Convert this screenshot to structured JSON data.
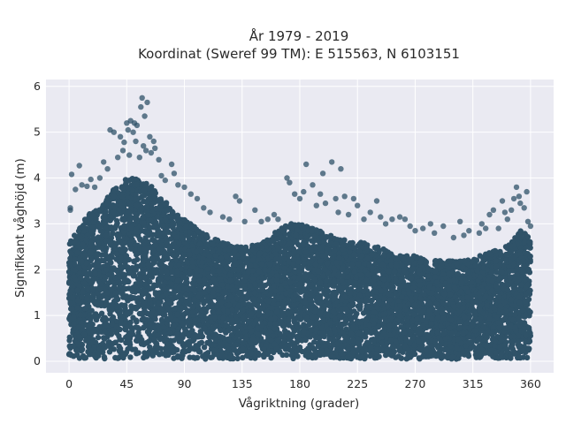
{
  "chart_data": {
    "type": "scatter",
    "title_lines": [
      "År 1979 - 2019",
      "Koordinat (Sweref 99 TM): E 515563, N 6103151"
    ],
    "xlabel": "Vågriktning (grader)",
    "ylabel": "Signifikant våghöjd (m)",
    "xlim": [
      -18,
      378
    ],
    "ylim": [
      -0.25,
      6.15
    ],
    "xticks": [
      0,
      45,
      90,
      135,
      180,
      225,
      270,
      315,
      360
    ],
    "yticks": [
      0,
      1,
      2,
      3,
      4,
      5,
      6
    ],
    "grid": true,
    "colors": {
      "background": "#eaeaf2",
      "grid": "#ffffff",
      "point": "#2f5268"
    },
    "point_opacity": 0.75,
    "dense_envelope": {
      "x": [
        0,
        5,
        10,
        15,
        20,
        25,
        30,
        35,
        40,
        45,
        50,
        55,
        60,
        65,
        70,
        75,
        80,
        85,
        90,
        95,
        100,
        110,
        120,
        130,
        140,
        150,
        160,
        170,
        180,
        190,
        200,
        210,
        220,
        230,
        240,
        250,
        260,
        270,
        280,
        290,
        300,
        310,
        320,
        330,
        340,
        345,
        350,
        355,
        360
      ],
      "y_low": 0.05,
      "y_high": [
        2.6,
        2.8,
        3.0,
        3.2,
        3.3,
        3.4,
        3.6,
        3.8,
        3.9,
        4.0,
        4.0,
        4.0,
        3.9,
        3.8,
        3.6,
        3.5,
        3.3,
        3.2,
        3.1,
        3.0,
        2.9,
        2.7,
        2.6,
        2.5,
        2.5,
        2.6,
        2.8,
        3.0,
        3.0,
        2.9,
        2.8,
        2.7,
        2.6,
        2.6,
        2.5,
        2.4,
        2.3,
        2.3,
        2.2,
        2.2,
        2.2,
        2.2,
        2.3,
        2.4,
        2.5,
        2.6,
        2.8,
        2.9,
        2.6
      ]
    },
    "outliers": [
      [
        1,
        3.35
      ],
      [
        1,
        3.3
      ],
      [
        2,
        4.08
      ],
      [
        5,
        3.75
      ],
      [
        8,
        4.27
      ],
      [
        10,
        3.85
      ],
      [
        14,
        3.82
      ],
      [
        17,
        3.97
      ],
      [
        20,
        3.8
      ],
      [
        24,
        4.0
      ],
      [
        27,
        4.35
      ],
      [
        30,
        4.2
      ],
      [
        32,
        5.05
      ],
      [
        35,
        5.0
      ],
      [
        38,
        4.45
      ],
      [
        40,
        4.9
      ],
      [
        42,
        4.6
      ],
      [
        43,
        4.78
      ],
      [
        45,
        5.2
      ],
      [
        46,
        5.05
      ],
      [
        47,
        4.5
      ],
      [
        48,
        5.25
      ],
      [
        50,
        5.0
      ],
      [
        51,
        5.2
      ],
      [
        52,
        4.8
      ],
      [
        53,
        5.15
      ],
      [
        55,
        4.45
      ],
      [
        56,
        5.55
      ],
      [
        57,
        5.75
      ],
      [
        58,
        4.7
      ],
      [
        59,
        5.35
      ],
      [
        60,
        4.6
      ],
      [
        61,
        5.65
      ],
      [
        63,
        4.9
      ],
      [
        64,
        4.55
      ],
      [
        66,
        4.8
      ],
      [
        67,
        4.65
      ],
      [
        70,
        4.4
      ],
      [
        72,
        4.05
      ],
      [
        75,
        3.95
      ],
      [
        80,
        4.3
      ],
      [
        82,
        4.1
      ],
      [
        85,
        3.85
      ],
      [
        90,
        3.8
      ],
      [
        95,
        3.65
      ],
      [
        100,
        3.55
      ],
      [
        105,
        3.35
      ],
      [
        110,
        3.25
      ],
      [
        120,
        3.15
      ],
      [
        125,
        3.1
      ],
      [
        130,
        3.6
      ],
      [
        133,
        3.5
      ],
      [
        137,
        3.05
      ],
      [
        145,
        3.3
      ],
      [
        150,
        3.05
      ],
      [
        155,
        3.1
      ],
      [
        160,
        3.2
      ],
      [
        163,
        3.1
      ],
      [
        170,
        4.0
      ],
      [
        172,
        3.9
      ],
      [
        176,
        3.65
      ],
      [
        180,
        3.55
      ],
      [
        183,
        3.7
      ],
      [
        185,
        4.3
      ],
      [
        190,
        3.85
      ],
      [
        193,
        3.4
      ],
      [
        196,
        3.65
      ],
      [
        198,
        4.1
      ],
      [
        200,
        3.45
      ],
      [
        205,
        4.35
      ],
      [
        208,
        3.55
      ],
      [
        210,
        3.25
      ],
      [
        212,
        4.2
      ],
      [
        215,
        3.6
      ],
      [
        218,
        3.2
      ],
      [
        222,
        3.55
      ],
      [
        225,
        3.4
      ],
      [
        230,
        3.1
      ],
      [
        235,
        3.25
      ],
      [
        240,
        3.5
      ],
      [
        243,
        3.15
      ],
      [
        247,
        3.0
      ],
      [
        252,
        3.1
      ],
      [
        258,
        3.15
      ],
      [
        262,
        3.1
      ],
      [
        266,
        2.95
      ],
      [
        270,
        2.85
      ],
      [
        276,
        2.9
      ],
      [
        282,
        3.0
      ],
      [
        285,
        2.8
      ],
      [
        292,
        2.95
      ],
      [
        300,
        2.7
      ],
      [
        305,
        3.05
      ],
      [
        308,
        2.75
      ],
      [
        312,
        2.85
      ],
      [
        320,
        2.8
      ],
      [
        322,
        3.0
      ],
      [
        325,
        2.9
      ],
      [
        328,
        3.2
      ],
      [
        331,
        3.3
      ],
      [
        335,
        2.9
      ],
      [
        338,
        3.5
      ],
      [
        340,
        3.25
      ],
      [
        342,
        3.1
      ],
      [
        345,
        3.3
      ],
      [
        347,
        3.55
      ],
      [
        349,
        3.8
      ],
      [
        351,
        3.6
      ],
      [
        352,
        3.45
      ],
      [
        355,
        3.35
      ],
      [
        357,
        3.7
      ],
      [
        358,
        3.05
      ],
      [
        360,
        2.95
      ]
    ]
  }
}
